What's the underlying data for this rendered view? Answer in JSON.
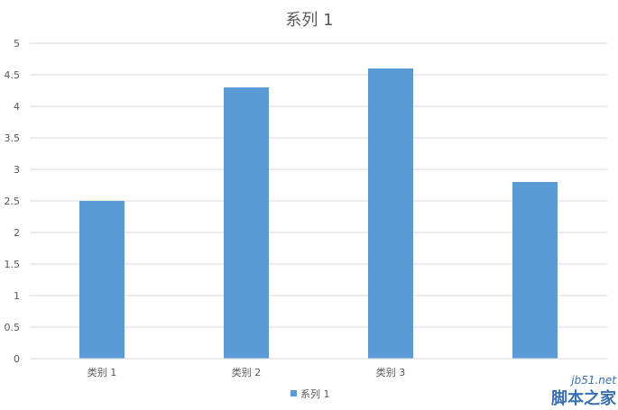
{
  "chart_data": {
    "type": "bar",
    "title": "系列 1",
    "categories": [
      "类别 1",
      "类别 2",
      "类别 3",
      ""
    ],
    "series": [
      {
        "name": "系列 1",
        "values": [
          2.5,
          4.3,
          4.6,
          2.8
        ],
        "color": "#5b9bd5"
      }
    ],
    "y_ticks": [
      "0",
      "0.5",
      "1",
      "1.5",
      "2",
      "2.5",
      "3",
      "3.5",
      "4",
      "4.5",
      "5"
    ],
    "ylim": [
      0,
      5
    ],
    "xlabel": "",
    "ylabel": "",
    "grid": true,
    "legend_position": "bottom"
  },
  "watermark": {
    "site": "jb51.net",
    "name": "脚本之家"
  }
}
